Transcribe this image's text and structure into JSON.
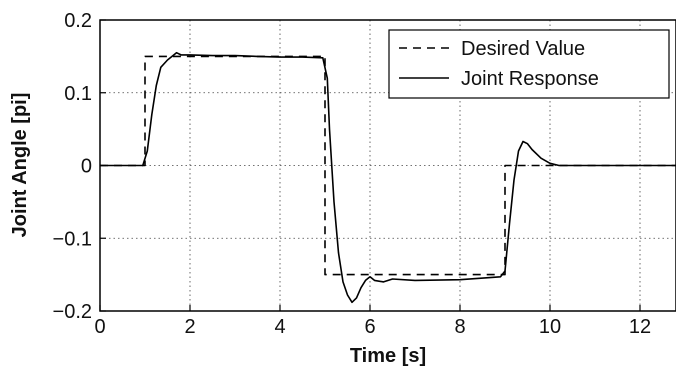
{
  "chart_data": {
    "type": "line",
    "xlabel": "Time [s]",
    "ylabel": "Joint Angle [pi]",
    "xlim": [
      0,
      12.8
    ],
    "ylim": [
      -0.2,
      0.2
    ],
    "x_ticks": [
      0,
      2,
      4,
      6,
      8,
      10,
      12
    ],
    "x_tick_labels": [
      "0",
      "2",
      "4",
      "6",
      "8",
      "10",
      "12"
    ],
    "y_ticks": [
      0.2,
      0.1,
      0,
      -0.1,
      -0.2
    ],
    "y_tick_labels": [
      "0.2",
      "0.1",
      "0",
      "−0.1",
      "−0.2"
    ],
    "grid": true,
    "legend_position": "top-right",
    "series": [
      {
        "name": "Desired Value",
        "style": "dashed",
        "color": "#000000",
        "x": [
          0,
          1.0,
          1.0,
          5.0,
          5.0,
          9.0,
          9.0,
          12.8
        ],
        "y": [
          0,
          0,
          0.15,
          0.15,
          -0.15,
          -0.15,
          0,
          0
        ]
      },
      {
        "name": "Joint Response",
        "style": "solid",
        "color": "#000000",
        "x": [
          0,
          0.95,
          1.05,
          1.15,
          1.25,
          1.35,
          1.5,
          1.6,
          1.7,
          1.8,
          2.0,
          2.5,
          3.0,
          3.5,
          4.0,
          4.5,
          4.95,
          5.05,
          5.1,
          5.2,
          5.3,
          5.4,
          5.5,
          5.6,
          5.7,
          5.8,
          5.9,
          6.0,
          6.1,
          6.3,
          6.5,
          7.0,
          8.0,
          8.9,
          9.0,
          9.1,
          9.2,
          9.3,
          9.4,
          9.5,
          9.6,
          9.8,
          10.0,
          10.2,
          10.5,
          11.0,
          12.0,
          12.8
        ],
        "y": [
          0,
          0,
          0.02,
          0.07,
          0.11,
          0.135,
          0.145,
          0.15,
          0.155,
          0.152,
          0.152,
          0.151,
          0.151,
          0.15,
          0.149,
          0.149,
          0.148,
          0.12,
          0.05,
          -0.05,
          -0.12,
          -0.16,
          -0.178,
          -0.188,
          -0.182,
          -0.168,
          -0.158,
          -0.153,
          -0.158,
          -0.16,
          -0.156,
          -0.158,
          -0.157,
          -0.153,
          -0.145,
          -0.08,
          -0.02,
          0.02,
          0.033,
          0.03,
          0.022,
          0.01,
          0.003,
          0,
          0,
          0,
          0,
          0
        ]
      }
    ]
  }
}
